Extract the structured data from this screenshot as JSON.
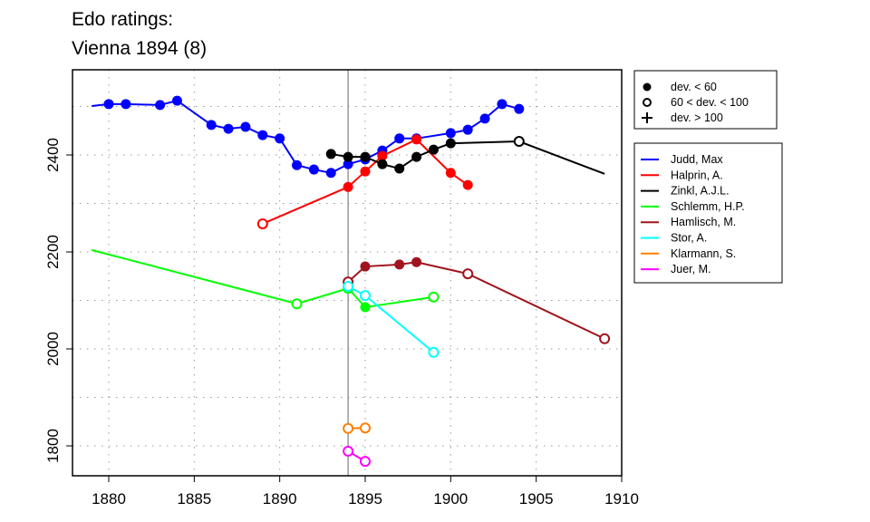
{
  "chart_data": {
    "type": "line",
    "title": [
      "Edo ratings:",
      "Vienna 1894 (8)"
    ],
    "xlim": [
      1877.9,
      1911.0
    ],
    "ylim": [
      1735,
      2575
    ],
    "xticks": [
      1880,
      1885,
      1890,
      1895,
      1900,
      1905,
      1910
    ],
    "yticks": [
      1800,
      2000,
      2200,
      2400
    ],
    "grid": true,
    "reference_x": 1894,
    "symbol_legend": [
      {
        "symbol": "filled",
        "label": "dev. < 60"
      },
      {
        "symbol": "open",
        "label": "60 < dev. < 100"
      },
      {
        "symbol": "plus",
        "label": "dev. > 100"
      }
    ],
    "series": [
      {
        "name": "Judd, Max",
        "color": "#0000FF",
        "points": [
          [
            1879,
            2501,
            "none"
          ],
          [
            1880,
            2505,
            "filled"
          ],
          [
            1881,
            2505,
            "filled"
          ],
          [
            1883,
            2503,
            "filled"
          ],
          [
            1884,
            2512,
            "filled"
          ],
          [
            1886,
            2462,
            "filled"
          ],
          [
            1887,
            2454,
            "filled"
          ],
          [
            1888,
            2458,
            "filled"
          ],
          [
            1889,
            2441,
            "filled"
          ],
          [
            1890,
            2434,
            "filled"
          ],
          [
            1891,
            2379,
            "filled"
          ],
          [
            1892,
            2370,
            "filled"
          ],
          [
            1893,
            2363,
            "filled"
          ],
          [
            1894,
            2381,
            "filled"
          ],
          [
            1895,
            2391,
            "filled"
          ],
          [
            1896,
            2409,
            "filled"
          ],
          [
            1897,
            2434,
            "filled"
          ],
          [
            1898,
            2434,
            "filled"
          ],
          [
            1900,
            2445,
            "filled"
          ],
          [
            1901,
            2452,
            "filled"
          ],
          [
            1902,
            2475,
            "filled"
          ],
          [
            1903,
            2505,
            "filled"
          ],
          [
            1904,
            2495,
            "filled"
          ]
        ]
      },
      {
        "name": "Halprin, A.",
        "color": "#FF0000",
        "points": [
          [
            1889,
            2258,
            "open"
          ],
          [
            1894,
            2334,
            "filled"
          ],
          [
            1895,
            2366,
            "filled"
          ],
          [
            1896,
            2398,
            "filled"
          ],
          [
            1898,
            2432,
            "filled"
          ],
          [
            1900,
            2363,
            "filled"
          ],
          [
            1901,
            2338,
            "filled"
          ]
        ]
      },
      {
        "name": "Zinkl, A.J.L.",
        "color": "#000000",
        "points": [
          [
            1893,
            2402,
            "filled"
          ],
          [
            1894,
            2396,
            "filled"
          ],
          [
            1895,
            2396,
            "filled"
          ],
          [
            1896,
            2381,
            "filled"
          ],
          [
            1897,
            2372,
            "filled"
          ],
          [
            1898,
            2396,
            "filled"
          ],
          [
            1899,
            2411,
            "filled"
          ],
          [
            1900,
            2424,
            "filled"
          ],
          [
            1904,
            2428,
            "open"
          ],
          [
            1909,
            2361,
            "none"
          ]
        ]
      },
      {
        "name": "Schlemm, H.P.",
        "color": "#00FF00",
        "points": [
          [
            1879,
            2204,
            "none"
          ],
          [
            1891,
            2093,
            "open"
          ],
          [
            1894,
            2125,
            "open"
          ],
          [
            1895,
            2086,
            "filled"
          ],
          [
            1899,
            2107,
            "open"
          ]
        ]
      },
      {
        "name": "Hamlisch, M.",
        "color": "#A0141E",
        "points": [
          [
            1894,
            2138,
            "open"
          ],
          [
            1895,
            2170,
            "filled"
          ],
          [
            1897,
            2174,
            "filled"
          ],
          [
            1898,
            2179,
            "filled"
          ],
          [
            1901,
            2155,
            "open"
          ],
          [
            1909,
            2021,
            "open"
          ]
        ]
      },
      {
        "name": "Stor, A.",
        "color": "#00FFFF",
        "points": [
          [
            1894,
            2129,
            "open"
          ],
          [
            1895,
            2110,
            "open"
          ],
          [
            1899,
            1993,
            "open"
          ]
        ]
      },
      {
        "name": "Klarmann, S.",
        "color": "#FF7F00",
        "points": [
          [
            1894,
            1836,
            "open"
          ],
          [
            1895,
            1837,
            "open"
          ]
        ]
      },
      {
        "name": "Juer, M.",
        "color": "#FF00FF",
        "points": [
          [
            1894,
            1789,
            "open"
          ],
          [
            1895,
            1768,
            "open"
          ]
        ]
      }
    ]
  }
}
